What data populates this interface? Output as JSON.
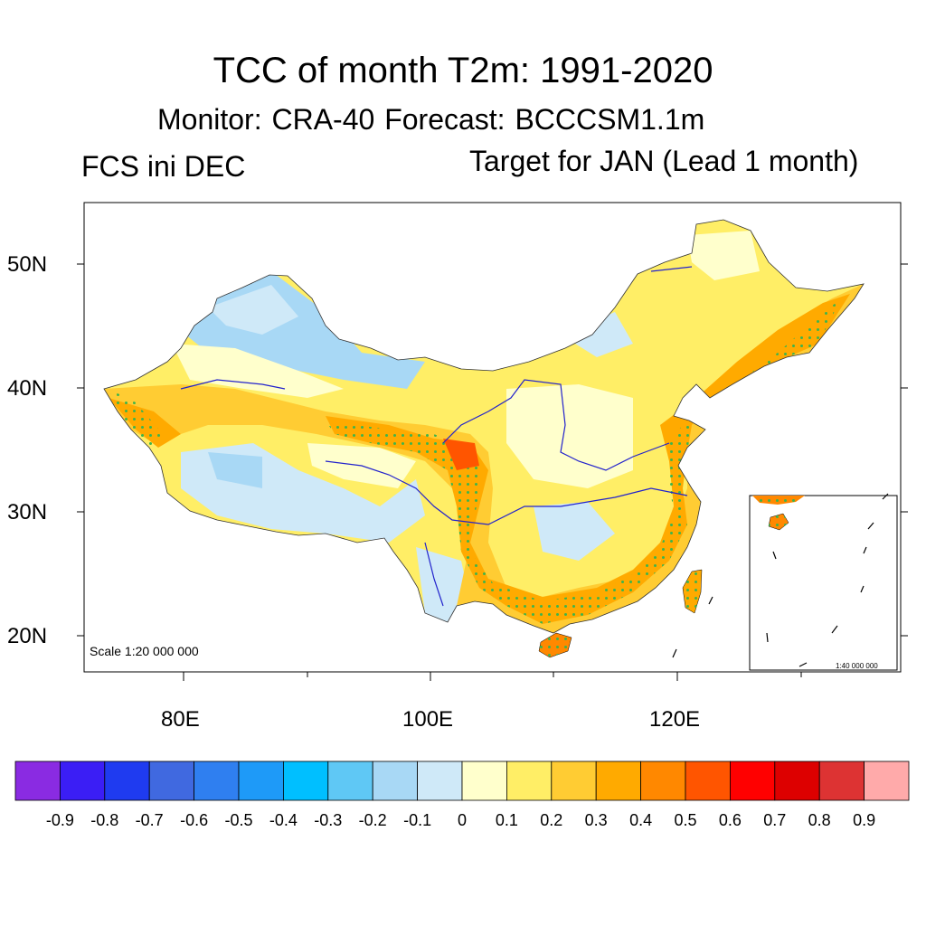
{
  "title": "TCC of month T2m: 1991-2020",
  "subtitle": "Monitor: CRA-40   Forecast: BCCCSM1.1m",
  "left_label": "FCS ini DEC",
  "right_label": "Target for JAN (Lead 1 month)",
  "map": {
    "lat_labels": [
      "50N",
      "40N",
      "30N",
      "20N"
    ],
    "lon_labels": [
      "80E",
      "100E",
      "120E"
    ],
    "scale_main": "Scale 1:20 000 000",
    "scale_inset": "1:40 000 000",
    "significance_marker_color": "#3cb44b"
  },
  "colorbar": {
    "labels": [
      "-0.9",
      "-0.8",
      "-0.7",
      "-0.6",
      "-0.5",
      "-0.4",
      "-0.3",
      "-0.2",
      "-0.1",
      "0",
      "0.1",
      "0.2",
      "0.3",
      "0.4",
      "0.5",
      "0.6",
      "0.7",
      "0.8",
      "0.9"
    ],
    "colors": [
      "#8a2be2",
      "#3b1ef5",
      "#1f3bf0",
      "#4069e0",
      "#2f7ff0",
      "#1e9af8",
      "#00bfff",
      "#5fc8f5",
      "#a8d8f5",
      "#cfe9f8",
      "#ffffcc",
      "#ffee66",
      "#ffcc33",
      "#ffaa00",
      "#ff8800",
      "#ff5500",
      "#ff0000",
      "#dd0000",
      "#dd3333",
      "#ffaaaa"
    ]
  }
}
